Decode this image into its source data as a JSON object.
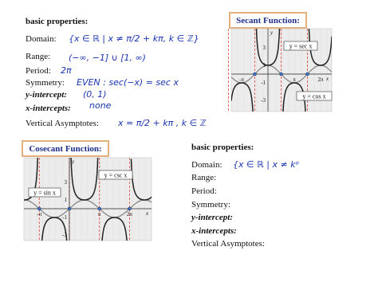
{
  "left_properties": {
    "heading": "basic properties:",
    "rows": [
      {
        "label": "Domain:",
        "answer": "{x ∈ ℝ | x ≠ π/2 + kπ, k ∈ ℤ}"
      },
      {
        "label": "Range:",
        "answer": "(−∞, −1] ∪ [1, ∞)"
      },
      {
        "label": "Period:",
        "answer": "2π"
      },
      {
        "label": "Symmetry:",
        "answer": "EVEN :  sec(−x) = sec x"
      },
      {
        "label": "y-intercept:",
        "answer": "(0, 1)"
      },
      {
        "label": "x-intercepts:",
        "answer": "none"
      },
      {
        "label": "Vertical Asymptotes:",
        "answer": "x = π/2 + kπ ,  k ∈ ℤ"
      }
    ]
  },
  "secant": {
    "title": "Secant Function:",
    "labels": {
      "y": "y",
      "x": "x",
      "y3": "3",
      "y1": "1",
      "yn1": "-1",
      "yn3": "-3",
      "neg_pi": "-π",
      "pi": "π",
      "two_pi": "2π",
      "curve": "y = sec x",
      "reference": "y = cos x"
    }
  },
  "cosecant": {
    "title": "Cosecant Function:",
    "labels": {
      "y": "y",
      "x": "x",
      "y3": "3",
      "y1": "1",
      "yn1": "-1",
      "yn3": "-3",
      "neg_pi": "-π",
      "pi": "π",
      "two_pi": "2π",
      "curve": "y = csc x",
      "reference": "y = sin x"
    }
  },
  "right_properties": {
    "heading": "basic properties:",
    "rows": [
      {
        "label": "Domain:",
        "answer": "{x ∈ ℝ | x ≠ kᵒ"
      },
      {
        "label": "Range:"
      },
      {
        "label": "Period:"
      },
      {
        "label": "Symmetry:"
      },
      {
        "label": "y-intercept:"
      },
      {
        "label": "x-intercepts:"
      },
      {
        "label": "Vertical Asymptotes:"
      }
    ]
  }
}
